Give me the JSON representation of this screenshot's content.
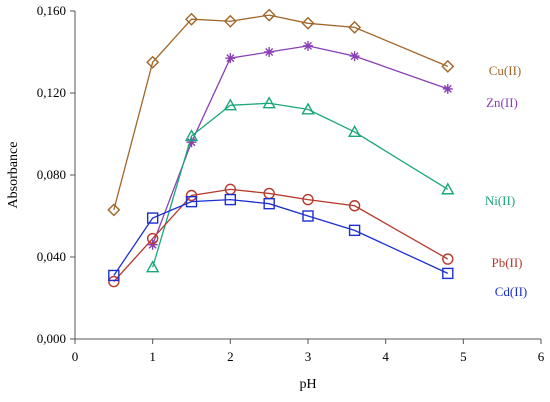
{
  "chart_data": {
    "type": "line",
    "xlabel": "pH",
    "ylabel": "Absorbance",
    "xlim": [
      0,
      6
    ],
    "ylim": [
      0,
      0.16
    ],
    "x_ticks": [
      0,
      1,
      2,
      3,
      4,
      5,
      6
    ],
    "x_tick_labels": [
      "0",
      "1",
      "2",
      "3",
      "4",
      "5",
      "6"
    ],
    "y_ticks": [
      0,
      0.04,
      0.08,
      0.12,
      0.16
    ],
    "y_tick_labels": [
      "0,000",
      "0,040",
      "0,080",
      "0,120",
      "0,160"
    ],
    "grid": false,
    "series": [
      {
        "name": "Cu(II)",
        "color": "#a0662a",
        "marker": "diamond",
        "x": [
          0.5,
          1,
          1.5,
          2,
          2.5,
          3,
          3.6,
          4.8
        ],
        "y": [
          0.063,
          0.135,
          0.156,
          0.155,
          0.158,
          0.154,
          0.152,
          0.133
        ]
      },
      {
        "name": "Zn(II)",
        "color": "#8a3fb3",
        "marker": "asterisk",
        "x": [
          1,
          1.5,
          2,
          2.5,
          3,
          3.6,
          4.8
        ],
        "y": [
          0.046,
          0.096,
          0.137,
          0.14,
          0.143,
          0.138,
          0.122
        ]
      },
      {
        "name": "Ni(II)",
        "color": "#1aa77a",
        "marker": "triangle",
        "x": [
          1,
          1.5,
          2,
          2.5,
          3,
          3.6,
          4.8
        ],
        "y": [
          0.035,
          0.099,
          0.114,
          0.115,
          0.112,
          0.101,
          0.073
        ]
      },
      {
        "name": "Pb(II)",
        "color": "#b5392a",
        "marker": "circle",
        "x": [
          0.5,
          1,
          1.5,
          2,
          2.5,
          3,
          3.6,
          4.8
        ],
        "y": [
          0.028,
          0.049,
          0.07,
          0.073,
          0.071,
          0.068,
          0.065,
          0.039
        ]
      },
      {
        "name": "Cd(II)",
        "color": "#1c2fd1",
        "marker": "square",
        "x": [
          0.5,
          1,
          1.5,
          2,
          2.5,
          3,
          3.6,
          4.8
        ],
        "y": [
          0.031,
          0.059,
          0.067,
          0.068,
          0.066,
          0.06,
          0.053,
          0.032
        ]
      }
    ]
  }
}
